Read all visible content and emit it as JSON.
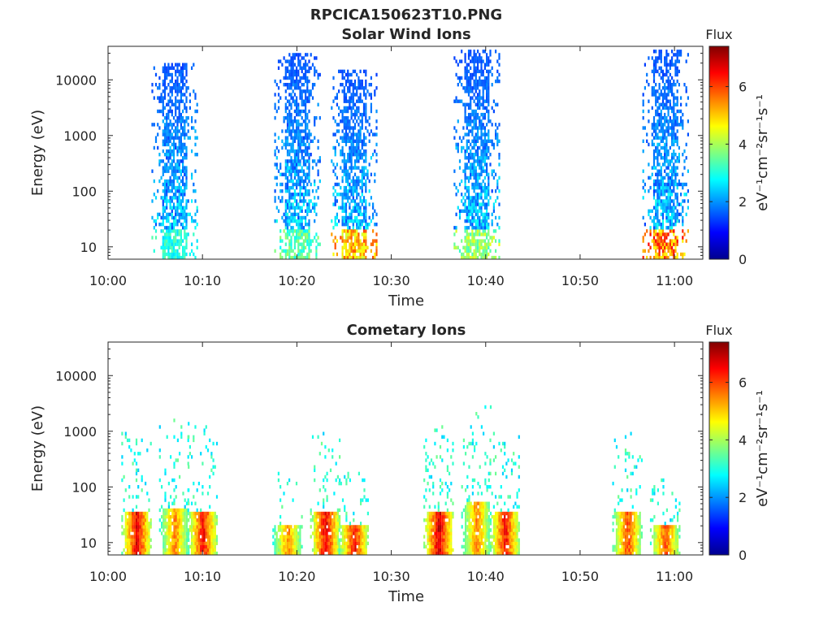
{
  "figure_title": "RPCICA150623T10.PNG",
  "colorbar": {
    "title": "Flux",
    "label": "eV⁻¹cm⁻²sr⁻¹s⁻¹",
    "range": [
      0,
      7.4
    ],
    "ticks": [
      "0",
      "2",
      "4",
      "6"
    ],
    "colormap": "jet"
  },
  "chart_data": [
    {
      "type": "heatmap",
      "title": "Solar Wind Ions",
      "xlabel": "Time",
      "ylabel": "Energy (eV)",
      "x_ticks": [
        "10:00",
        "10:10",
        "10:20",
        "10:30",
        "10:40",
        "10:50",
        "11:00"
      ],
      "y_ticks": [
        "10",
        "100",
        "1000",
        "10000"
      ],
      "y_scale": "log",
      "xlim": [
        "10:00",
        "11:03"
      ],
      "ylim": [
        6,
        40000
      ],
      "bursts": [
        {
          "t": "10:07",
          "e_lo": 6,
          "e_hi": 20000,
          "flux_peak": 3.5
        },
        {
          "t": "10:20",
          "e_lo": 6,
          "e_hi": 30000,
          "flux_peak": 4.0
        },
        {
          "t": "10:26",
          "e_lo": 6,
          "e_hi": 15000,
          "flux_peak": 6.0
        },
        {
          "t": "10:39",
          "e_lo": 6,
          "e_hi": 35000,
          "flux_peak": 4.5
        },
        {
          "t": "10:59",
          "e_lo": 6,
          "e_hi": 35000,
          "flux_peak": 6.5
        }
      ]
    },
    {
      "type": "heatmap",
      "title": "Cometary Ions",
      "xlabel": "Time",
      "ylabel": "Energy (eV)",
      "x_ticks": [
        "10:00",
        "10:10",
        "10:20",
        "10:30",
        "10:40",
        "10:50",
        "11:00"
      ],
      "y_ticks": [
        "10",
        "100",
        "1000",
        "10000"
      ],
      "y_scale": "log",
      "xlim": [
        "10:00",
        "11:03"
      ],
      "ylim": [
        6,
        40000
      ],
      "bursts": [
        {
          "t": "10:03",
          "e_lo": 6,
          "e_hi": 1000,
          "flux_peak": 7.2
        },
        {
          "t": "10:07",
          "e_lo": 6,
          "e_hi": 1700,
          "flux_peak": 6.0
        },
        {
          "t": "10:10",
          "e_lo": 6,
          "e_hi": 1200,
          "flux_peak": 7.0
        },
        {
          "t": "10:19",
          "e_lo": 6,
          "e_hi": 200,
          "flux_peak": 6.0
        },
        {
          "t": "10:23",
          "e_lo": 6,
          "e_hi": 1000,
          "flux_peak": 7.2
        },
        {
          "t": "10:26",
          "e_lo": 6,
          "e_hi": 200,
          "flux_peak": 7.0
        },
        {
          "t": "10:35",
          "e_lo": 6,
          "e_hi": 1200,
          "flux_peak": 7.4
        },
        {
          "t": "10:39",
          "e_lo": 6,
          "e_hi": 3000,
          "flux_peak": 6.0
        },
        {
          "t": "10:42",
          "e_lo": 6,
          "e_hi": 1000,
          "flux_peak": 7.0
        },
        {
          "t": "10:55",
          "e_lo": 6,
          "e_hi": 1000,
          "flux_peak": 6.5
        },
        {
          "t": "10:59",
          "e_lo": 6,
          "e_hi": 200,
          "flux_peak": 6.5
        }
      ]
    }
  ]
}
